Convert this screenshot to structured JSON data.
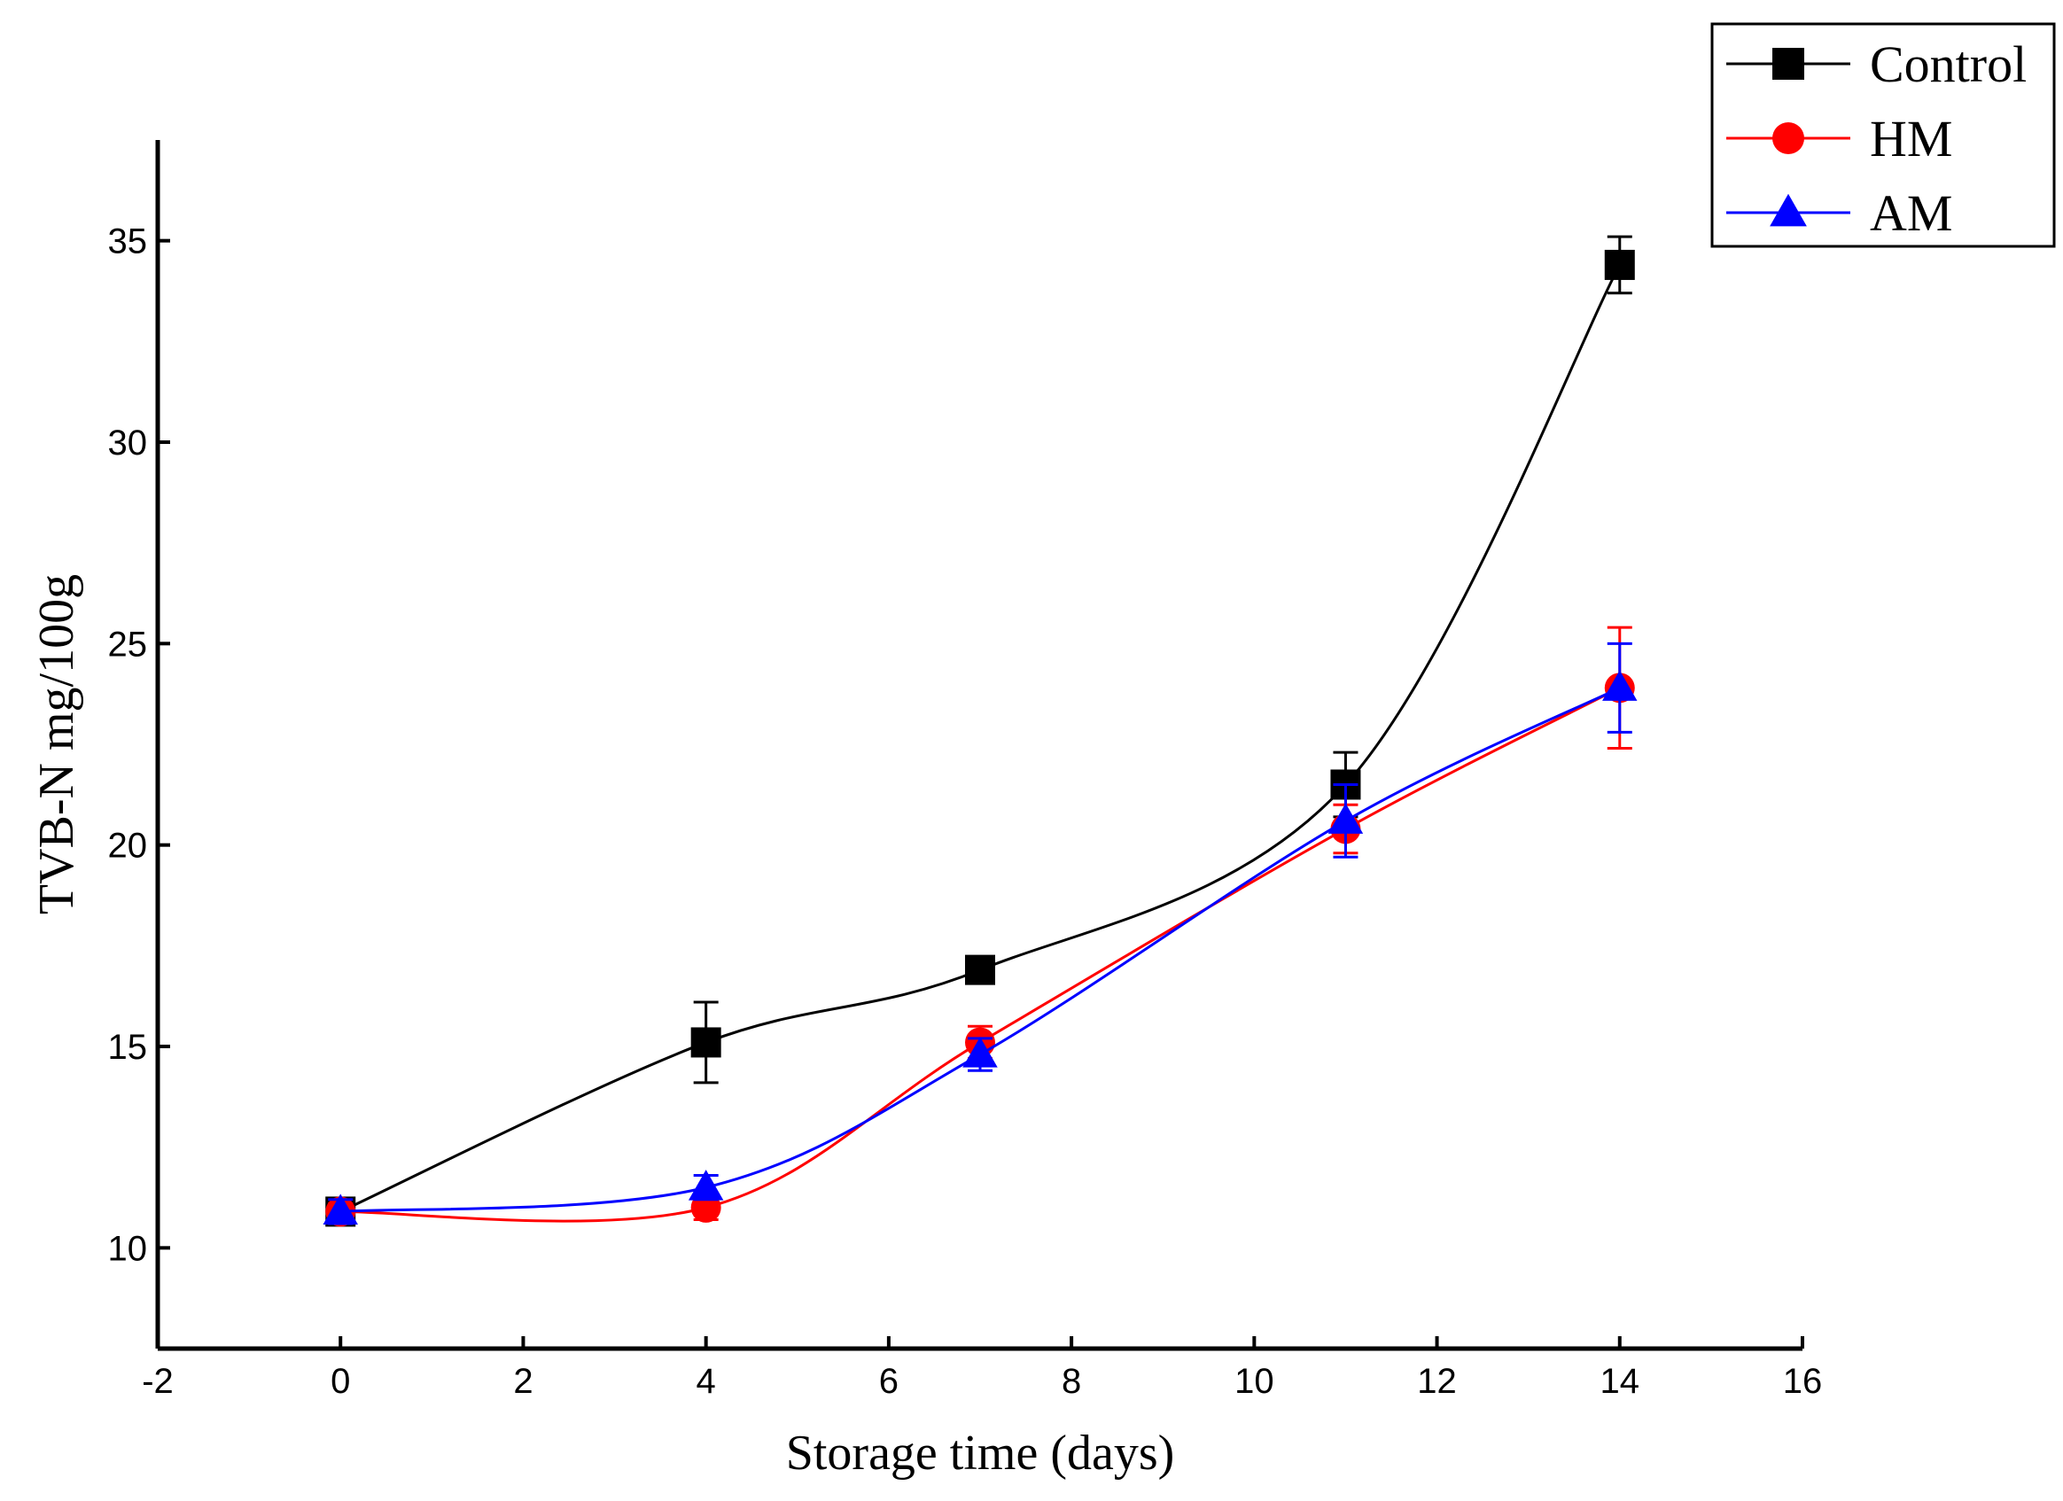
{
  "chart_data": {
    "type": "line",
    "title": "",
    "xlabel": "Storage time (days)",
    "ylabel": "TVB-N mg/100g",
    "xlim": [
      -2,
      16
    ],
    "ylim": [
      7.5,
      37.5
    ],
    "x_ticks": [
      -2,
      0,
      2,
      4,
      6,
      8,
      10,
      12,
      14,
      16
    ],
    "y_ticks": [
      10,
      15,
      20,
      25,
      30,
      35
    ],
    "x_tick_labels": [
      "-2",
      "0",
      "2",
      "4",
      "6",
      "8",
      "10",
      "12",
      "14",
      "16"
    ],
    "y_tick_labels": [
      "10",
      "15",
      "20",
      "25",
      "30",
      "35"
    ],
    "legend_position": "top-right",
    "x": [
      0,
      4,
      7,
      11,
      14
    ],
    "series": [
      {
        "name": "Control",
        "color": "#000000",
        "marker": "square",
        "values": [
          10.9,
          15.1,
          16.9,
          21.5,
          34.4
        ],
        "errors": [
          0.2,
          1.0,
          0.3,
          0.8,
          0.7
        ]
      },
      {
        "name": "HM",
        "color": "#ff0000",
        "marker": "circle",
        "values": [
          10.9,
          11.0,
          15.1,
          20.4,
          23.9
        ],
        "errors": [
          0.2,
          0.3,
          0.4,
          0.6,
          1.5
        ]
      },
      {
        "name": "AM",
        "color": "#0000ff",
        "marker": "triangle",
        "values": [
          10.9,
          11.5,
          14.8,
          20.6,
          23.9
        ],
        "errors": [
          0.3,
          0.3,
          0.4,
          0.9,
          1.1
        ]
      }
    ]
  }
}
